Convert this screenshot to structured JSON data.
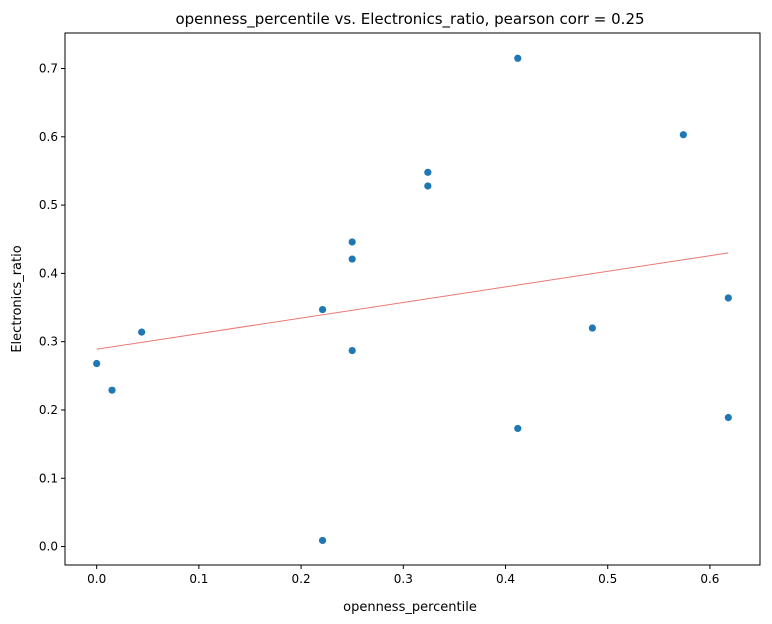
{
  "chart_data": {
    "type": "scatter",
    "title": "openness_percentile vs. Electronics_ratio, pearson corr = 0.25",
    "xlabel": "openness_percentile",
    "ylabel": "Electronics_ratio",
    "xlim": [
      -0.031,
      0.649
    ],
    "ylim": [
      -0.027,
      0.752
    ],
    "xticks": [
      0.0,
      0.1,
      0.2,
      0.3,
      0.4,
      0.5,
      0.6
    ],
    "yticks": [
      0.0,
      0.1,
      0.2,
      0.3,
      0.4,
      0.5,
      0.6,
      0.7
    ],
    "grid": false,
    "point_color": "#1f77b4",
    "trend_color": "#e8605a",
    "points": [
      {
        "x": 0.0,
        "y": 0.268
      },
      {
        "x": 0.015,
        "y": 0.229
      },
      {
        "x": 0.044,
        "y": 0.314
      },
      {
        "x": 0.221,
        "y": 0.347
      },
      {
        "x": 0.221,
        "y": 0.009
      },
      {
        "x": 0.25,
        "y": 0.446
      },
      {
        "x": 0.25,
        "y": 0.421
      },
      {
        "x": 0.25,
        "y": 0.287
      },
      {
        "x": 0.324,
        "y": 0.548
      },
      {
        "x": 0.324,
        "y": 0.528
      },
      {
        "x": 0.412,
        "y": 0.715
      },
      {
        "x": 0.412,
        "y": 0.173
      },
      {
        "x": 0.485,
        "y": 0.32
      },
      {
        "x": 0.574,
        "y": 0.603
      },
      {
        "x": 0.618,
        "y": 0.364
      },
      {
        "x": 0.618,
        "y": 0.189
      }
    ],
    "trend_line": {
      "x": [
        0.0,
        0.618
      ],
      "y": [
        0.289,
        0.43
      ]
    }
  }
}
